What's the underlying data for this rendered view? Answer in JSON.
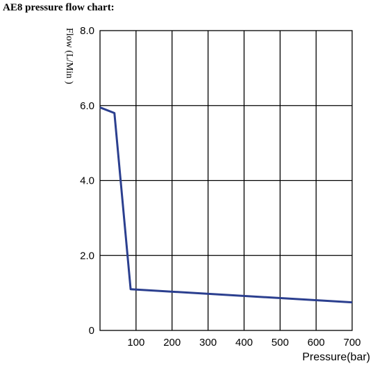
{
  "page": {
    "title": "AE8 pressure flow chart:"
  },
  "chart_data": {
    "type": "line",
    "title": "AE8 pressure flow chart:",
    "xlabel": "Pressure(bar)",
    "ylabel": "Flow (L/Min )",
    "xlim": [
      0,
      700
    ],
    "ylim": [
      0,
      8
    ],
    "x_ticks": [
      100,
      200,
      300,
      400,
      500,
      600,
      700
    ],
    "x_tick_labels": [
      "100",
      "200",
      "300",
      "400",
      "500",
      "600",
      "700"
    ],
    "y_ticks": [
      0,
      2,
      4,
      6,
      8
    ],
    "y_tick_labels": [
      "0",
      "2.0",
      "4.0",
      "6.0",
      "8.0"
    ],
    "grid": true,
    "line_color": "#2b3f8f",
    "series": [
      {
        "x": [
          0,
          40,
          85,
          700
        ],
        "y": [
          5.95,
          5.8,
          1.1,
          0.75
        ]
      }
    ]
  }
}
